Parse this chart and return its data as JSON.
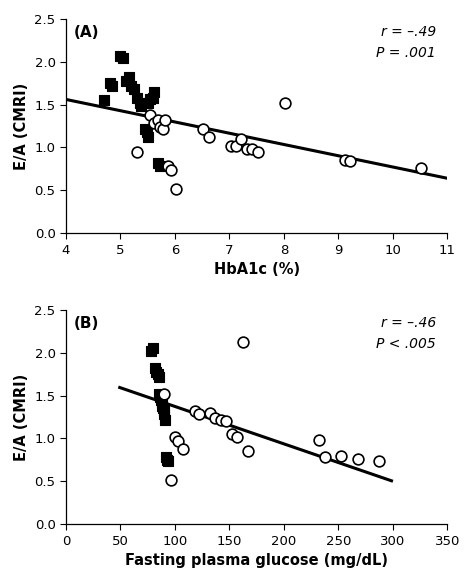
{
  "panel_A": {
    "label": "(A)",
    "xlabel": "HbA1c (%)",
    "ylabel": "E/A (CMRI)",
    "xlim": [
      4,
      11
    ],
    "ylim": [
      0.0,
      2.5
    ],
    "xticks": [
      4,
      5,
      6,
      7,
      8,
      9,
      10,
      11
    ],
    "yticks": [
      0.0,
      0.5,
      1.0,
      1.5,
      2.0,
      2.5
    ],
    "annotation": "r = –.49\nP = .001",
    "squares": [
      [
        4.7,
        1.55
      ],
      [
        4.8,
        1.75
      ],
      [
        4.85,
        1.72
      ],
      [
        5.0,
        2.07
      ],
      [
        5.05,
        2.04
      ],
      [
        5.1,
        1.78
      ],
      [
        5.15,
        1.82
      ],
      [
        5.2,
        1.72
      ],
      [
        5.25,
        1.68
      ],
      [
        5.3,
        1.58
      ],
      [
        5.35,
        1.52
      ],
      [
        5.38,
        1.48
      ],
      [
        5.45,
        1.22
      ],
      [
        5.48,
        1.18
      ],
      [
        5.5,
        1.12
      ],
      [
        5.5,
        1.52
      ],
      [
        5.55,
        1.56
      ],
      [
        5.6,
        1.58
      ],
      [
        5.62,
        1.65
      ],
      [
        5.68,
        0.82
      ],
      [
        5.72,
        0.78
      ]
    ],
    "circles": [
      [
        5.3,
        0.95
      ],
      [
        5.55,
        1.38
      ],
      [
        5.62,
        1.28
      ],
      [
        5.68,
        1.32
      ],
      [
        5.72,
        1.24
      ],
      [
        5.78,
        1.22
      ],
      [
        5.82,
        1.32
      ],
      [
        5.88,
        0.78
      ],
      [
        5.92,
        0.74
      ],
      [
        6.02,
        0.52
      ],
      [
        6.52,
        1.22
      ],
      [
        6.62,
        1.12
      ],
      [
        7.02,
        1.02
      ],
      [
        7.12,
        1.02
      ],
      [
        7.22,
        1.1
      ],
      [
        7.32,
        0.98
      ],
      [
        7.42,
        0.98
      ],
      [
        7.52,
        0.95
      ],
      [
        8.02,
        1.52
      ],
      [
        9.12,
        0.85
      ],
      [
        9.22,
        0.84
      ],
      [
        10.52,
        0.76
      ]
    ],
    "line_x": [
      4,
      11
    ],
    "line_y": [
      1.56,
      0.64
    ]
  },
  "panel_B": {
    "label": "(B)",
    "xlabel": "Fasting plasma glucose (mg/dL)",
    "ylabel": "E/A (CMRI)",
    "xlim": [
      0,
      350
    ],
    "ylim": [
      0.0,
      2.5
    ],
    "xticks": [
      0,
      50,
      100,
      150,
      200,
      250,
      300,
      350
    ],
    "yticks": [
      0.0,
      0.5,
      1.0,
      1.5,
      2.0,
      2.5
    ],
    "annotation": "r = –.46\nP < .005",
    "squares": [
      [
        78,
        2.02
      ],
      [
        80,
        2.06
      ],
      [
        82,
        1.82
      ],
      [
        83,
        1.78
      ],
      [
        84,
        1.75
      ],
      [
        85,
        1.72
      ],
      [
        85,
        1.52
      ],
      [
        86,
        1.48
      ],
      [
        87,
        1.45
      ],
      [
        88,
        1.42
      ],
      [
        88,
        1.38
      ],
      [
        89,
        1.35
      ],
      [
        90,
        1.32
      ],
      [
        90,
        1.28
      ],
      [
        91,
        1.22
      ],
      [
        92,
        0.78
      ],
      [
        93,
        0.75
      ],
      [
        94,
        0.74
      ]
    ],
    "circles": [
      [
        90,
        1.52
      ],
      [
        96,
        0.52
      ],
      [
        100,
        1.02
      ],
      [
        103,
        0.97
      ],
      [
        107,
        0.88
      ],
      [
        118,
        1.32
      ],
      [
        122,
        1.28
      ],
      [
        132,
        1.3
      ],
      [
        137,
        1.24
      ],
      [
        142,
        1.22
      ],
      [
        147,
        1.2
      ],
      [
        152,
        1.05
      ],
      [
        157,
        1.02
      ],
      [
        162,
        2.12
      ],
      [
        167,
        0.85
      ],
      [
        232,
        0.98
      ],
      [
        238,
        0.78
      ],
      [
        252,
        0.8
      ],
      [
        268,
        0.76
      ],
      [
        287,
        0.74
      ]
    ],
    "line_x": [
      48,
      300
    ],
    "line_y": [
      1.6,
      0.5
    ]
  },
  "figure_bg": "#ffffff",
  "marker_color_filled": "black",
  "marker_color_open": "white",
  "marker_edge_color": "black",
  "line_color": "black",
  "line_width": 2.2,
  "marker_size_sq": 55,
  "marker_size_circ": 60,
  "marker_lw_circ": 1.2,
  "fontsize_label": 10.5,
  "fontsize_tick": 9.5,
  "fontsize_annot": 10,
  "fontsize_panel": 11
}
